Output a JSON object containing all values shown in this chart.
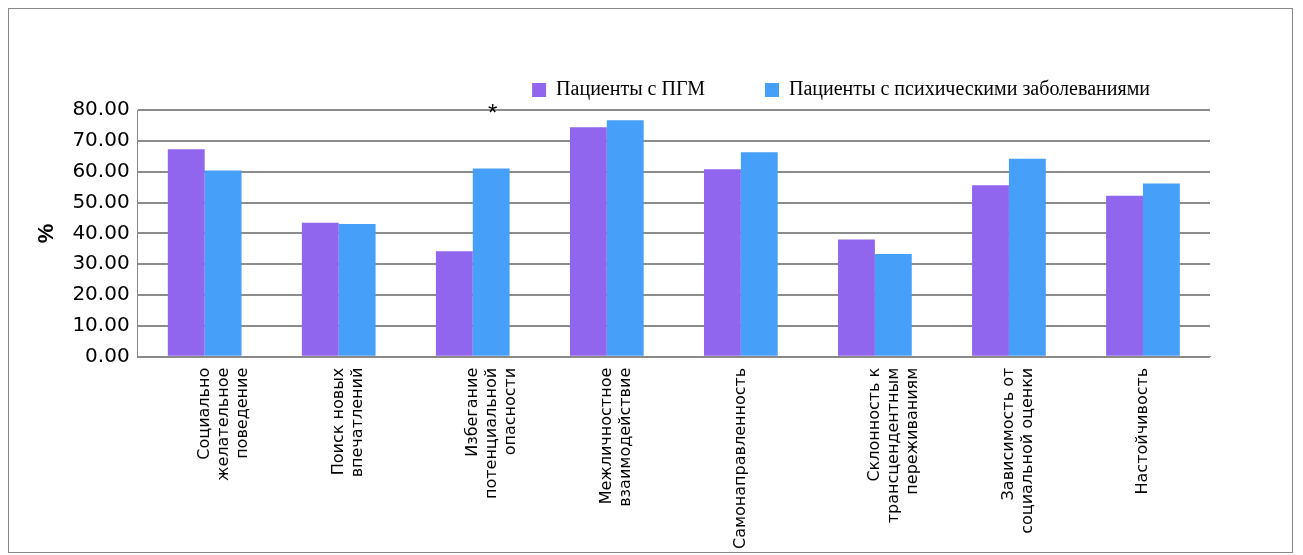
{
  "chart_data": {
    "type": "bar",
    "ylabel": "%",
    "categories": [
      "Социально желательное поведение",
      "Поиск новых впечатлений",
      "Избегание потенциальной опасности",
      "Межличностное взаимодействие",
      "Самонаправленность",
      "Склонность к трансцендентным переживаниям",
      "Зависимость от социальной оценки",
      "Настойчивость"
    ],
    "series": [
      {
        "name": "Пациенты с ПГМ",
        "color": "#9166ee",
        "values": [
          67.3,
          43.4,
          34.2,
          74.4,
          60.8,
          38,
          55.6,
          52.2
        ]
      },
      {
        "name": "Пациенты с психическими заболеваниями",
        "color": "#46a0fa",
        "values": [
          60.4,
          43,
          61,
          76.7,
          66.3,
          33.3,
          64.2,
          56.2
        ]
      }
    ],
    "ylim": [
      0,
      80
    ],
    "yticks": [
      {
        "value": 0,
        "label": "0.00"
      },
      {
        "value": 10,
        "label": "10.00"
      },
      {
        "value": 20,
        "label": "20.00"
      },
      {
        "value": 30,
        "label": "30.00"
      },
      {
        "value": 40,
        "label": "40.00"
      },
      {
        "value": 50,
        "label": "50.00"
      },
      {
        "value": 60,
        "label": "60.00"
      },
      {
        "value": 70,
        "label": "70.00"
      },
      {
        "value": 80,
        "label": "80.00"
      }
    ],
    "annotations": [
      "*"
    ],
    "grid": "y",
    "legend": "top right"
  }
}
